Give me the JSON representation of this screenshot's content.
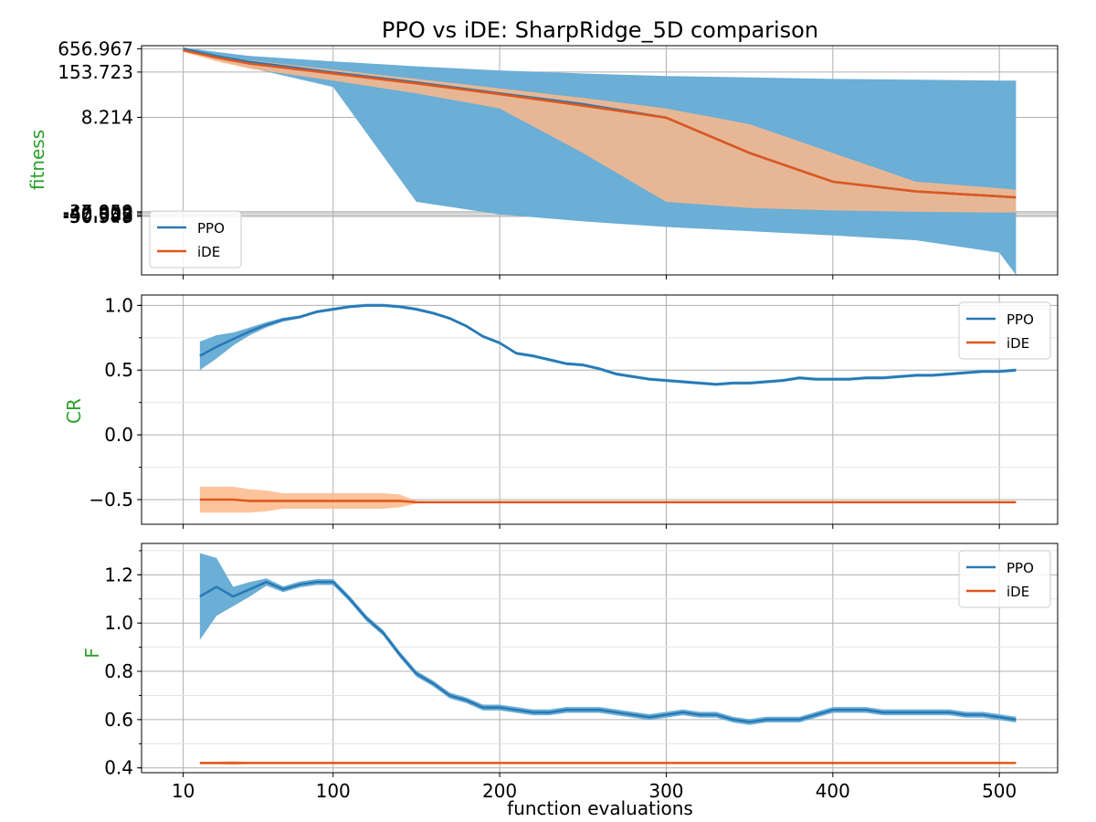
{
  "figure": {
    "title": "PPO vs iDE: SharpRidge_5D comparison",
    "xlabel": "function evaluations"
  },
  "colors": {
    "ppo_line": "#2878b5",
    "ppo_band": "#6baed6",
    "ide_line": "#e2561b",
    "ide_band": "#fdb98a",
    "axis_label": "#2ca02c"
  },
  "chart_data": [
    {
      "type": "line",
      "name": "fitness",
      "title": "PPO vs iDE: SharpRidge_5D comparison",
      "xlabel": "",
      "ylabel": "fitness",
      "xlim": [
        -15,
        535
      ],
      "x_ticks": [
        10,
        100,
        200,
        300,
        400,
        500
      ],
      "y_scale": "symlog",
      "y_ticks": [
        656.967,
        153.723,
        8.214,
        -37.959,
        -40.902,
        -46.032,
        -50.598,
        -50.949
      ],
      "y_tick_labels": [
        "656.967",
        "153.723",
        "8.214",
        "-37.959",
        "-40.902",
        "-46.032",
        "-50.598",
        "-50.949"
      ],
      "grid": true,
      "legend": "bottom-left",
      "x": [
        10,
        30,
        50,
        100,
        150,
        200,
        250,
        300,
        350,
        400,
        450,
        500,
        510
      ],
      "series": [
        {
          "name": "PPO",
          "values": [
            656.967,
            420,
            290,
            150,
            80,
            40,
            20,
            8,
            0,
            -5,
            -10,
            -14,
            -15
          ],
          "upper": [
            720,
            540,
            420,
            300,
            220,
            170,
            140,
            120,
            110,
            100,
            95,
            90,
            90
          ],
          "lower": [
            600,
            330,
            200,
            60,
            -20,
            -45,
            -70,
            -100,
            -130,
            -170,
            -230,
            -500,
            -2000
          ]
        },
        {
          "name": "iDE",
          "values": [
            600,
            380,
            260,
            140,
            75,
            38,
            18,
            8,
            0,
            -5,
            -10,
            -14,
            -15
          ],
          "upper": [
            680,
            450,
            320,
            180,
            100,
            55,
            30,
            15,
            5,
            0,
            -5,
            -8,
            -9
          ],
          "lower": [
            540,
            300,
            190,
            90,
            40,
            15,
            0,
            -20,
            -30,
            -35,
            -38,
            -40,
            -40
          ]
        }
      ]
    },
    {
      "type": "line",
      "name": "CR",
      "title": "",
      "xlabel": "",
      "ylabel": "CR",
      "xlim": [
        -15,
        535
      ],
      "ylim": [
        -0.69,
        1.08
      ],
      "x_ticks": [
        10,
        100,
        200,
        300,
        400,
        500
      ],
      "y_ticks": [
        -0.5,
        0.0,
        0.5,
        1.0
      ],
      "y_tick_labels": [
        "−0.5",
        "0.0",
        "0.5",
        "1.0"
      ],
      "grid": true,
      "legend": "top-right",
      "x": [
        20,
        30,
        40,
        50,
        60,
        70,
        80,
        90,
        100,
        110,
        120,
        130,
        140,
        150,
        160,
        170,
        180,
        190,
        200,
        210,
        220,
        230,
        240,
        250,
        260,
        270,
        280,
        290,
        300,
        310,
        320,
        330,
        340,
        350,
        360,
        370,
        380,
        390,
        400,
        410,
        420,
        430,
        440,
        450,
        460,
        470,
        480,
        490,
        500,
        510
      ],
      "series": [
        {
          "name": "PPO",
          "values": [
            0.61,
            0.68,
            0.74,
            0.8,
            0.85,
            0.89,
            0.91,
            0.95,
            0.97,
            0.99,
            1.0,
            1.0,
            0.99,
            0.97,
            0.94,
            0.9,
            0.84,
            0.76,
            0.71,
            0.63,
            0.61,
            0.58,
            0.55,
            0.54,
            0.51,
            0.47,
            0.45,
            0.43,
            0.42,
            0.41,
            0.4,
            0.39,
            0.4,
            0.4,
            0.41,
            0.42,
            0.44,
            0.43,
            0.43,
            0.43,
            0.44,
            0.44,
            0.45,
            0.46,
            0.46,
            0.47,
            0.48,
            0.49,
            0.49,
            0.5
          ],
          "band": [
            0.11,
            0.09,
            0.05,
            0.03,
            0.02,
            0.015,
            0.012,
            0.012,
            0.012,
            0.012,
            0.012,
            0.012,
            0.012,
            0.012,
            0.012,
            0.012,
            0.012,
            0.012,
            0.012,
            0.012,
            0.012,
            0.012,
            0.012,
            0.012,
            0.012,
            0.012,
            0.012,
            0.012,
            0.012,
            0.012,
            0.012,
            0.012,
            0.012,
            0.012,
            0.012,
            0.012,
            0.012,
            0.012,
            0.012,
            0.012,
            0.012,
            0.012,
            0.012,
            0.012,
            0.012,
            0.012,
            0.012,
            0.012,
            0.012,
            0.012
          ]
        },
        {
          "name": "iDE",
          "values": [
            -0.5,
            -0.5,
            -0.5,
            -0.51,
            -0.51,
            -0.51,
            -0.51,
            -0.51,
            -0.51,
            -0.51,
            -0.51,
            -0.51,
            -0.51,
            -0.52,
            -0.52,
            -0.52,
            -0.52,
            -0.52,
            -0.52,
            -0.52,
            -0.52,
            -0.52,
            -0.52,
            -0.52,
            -0.52,
            -0.52,
            -0.52,
            -0.52,
            -0.52,
            -0.52,
            -0.52,
            -0.52,
            -0.52,
            -0.52,
            -0.52,
            -0.52,
            -0.52,
            -0.52,
            -0.52,
            -0.52,
            -0.52,
            -0.52,
            -0.52,
            -0.52,
            -0.52,
            -0.52,
            -0.52,
            -0.52,
            -0.52,
            -0.52
          ],
          "band": [
            0.1,
            0.1,
            0.1,
            0.09,
            0.08,
            0.06,
            0.06,
            0.06,
            0.06,
            0.06,
            0.06,
            0.06,
            0.05,
            0.01,
            0.005,
            0.005,
            0.005,
            0.005,
            0.005,
            0.005,
            0.005,
            0.005,
            0.005,
            0.005,
            0.005,
            0.005,
            0.005,
            0.005,
            0.005,
            0.005,
            0.005,
            0.005,
            0.005,
            0.005,
            0.005,
            0.005,
            0.005,
            0.005,
            0.005,
            0.005,
            0.005,
            0.005,
            0.005,
            0.005,
            0.005,
            0.005,
            0.005,
            0.005,
            0.005,
            0.005
          ]
        }
      ]
    },
    {
      "type": "line",
      "name": "F",
      "title": "",
      "xlabel": "function evaluations",
      "ylabel": "F",
      "xlim": [
        -15,
        535
      ],
      "ylim": [
        0.38,
        1.33
      ],
      "x_ticks": [
        10,
        100,
        200,
        300,
        400,
        500
      ],
      "y_ticks": [
        0.4,
        0.6,
        0.8,
        1.0,
        1.2
      ],
      "y_tick_labels": [
        "0.4",
        "0.6",
        "0.8",
        "1.0",
        "1.2"
      ],
      "grid": true,
      "legend": "top-right",
      "x": [
        20,
        30,
        40,
        50,
        60,
        70,
        80,
        90,
        100,
        110,
        120,
        130,
        140,
        150,
        160,
        170,
        180,
        190,
        200,
        210,
        220,
        230,
        240,
        250,
        260,
        270,
        280,
        290,
        300,
        310,
        320,
        330,
        340,
        350,
        360,
        370,
        380,
        390,
        400,
        410,
        420,
        430,
        440,
        450,
        460,
        470,
        480,
        490,
        500,
        510
      ],
      "series": [
        {
          "name": "PPO",
          "values": [
            1.11,
            1.15,
            1.11,
            1.14,
            1.17,
            1.14,
            1.16,
            1.17,
            1.17,
            1.1,
            1.02,
            0.96,
            0.87,
            0.79,
            0.75,
            0.7,
            0.68,
            0.65,
            0.65,
            0.64,
            0.63,
            0.63,
            0.64,
            0.64,
            0.64,
            0.63,
            0.62,
            0.61,
            0.62,
            0.63,
            0.62,
            0.62,
            0.6,
            0.59,
            0.6,
            0.6,
            0.6,
            0.62,
            0.64,
            0.64,
            0.64,
            0.63,
            0.63,
            0.63,
            0.63,
            0.63,
            0.62,
            0.62,
            0.61,
            0.6
          ],
          "band": [
            0.18,
            0.12,
            0.04,
            0.03,
            0.015,
            0.012,
            0.012,
            0.012,
            0.012,
            0.012,
            0.012,
            0.012,
            0.012,
            0.012,
            0.012,
            0.012,
            0.012,
            0.012,
            0.012,
            0.012,
            0.012,
            0.012,
            0.012,
            0.012,
            0.012,
            0.012,
            0.012,
            0.012,
            0.012,
            0.012,
            0.012,
            0.012,
            0.012,
            0.012,
            0.012,
            0.012,
            0.012,
            0.012,
            0.012,
            0.012,
            0.012,
            0.012,
            0.012,
            0.012,
            0.012,
            0.012,
            0.012,
            0.012,
            0.012,
            0.012
          ]
        },
        {
          "name": "iDE",
          "values": [
            0.42,
            0.42,
            0.42,
            0.42,
            0.42,
            0.42,
            0.42,
            0.42,
            0.42,
            0.42,
            0.42,
            0.42,
            0.42,
            0.42,
            0.42,
            0.42,
            0.42,
            0.42,
            0.42,
            0.42,
            0.42,
            0.42,
            0.42,
            0.42,
            0.42,
            0.42,
            0.42,
            0.42,
            0.42,
            0.42,
            0.42,
            0.42,
            0.42,
            0.42,
            0.42,
            0.42,
            0.42,
            0.42,
            0.42,
            0.42,
            0.42,
            0.42,
            0.42,
            0.42,
            0.42,
            0.42,
            0.42,
            0.42,
            0.42,
            0.42
          ],
          "band": [
            0.005,
            0.005,
            0.008,
            0.004,
            0.003,
            0.003,
            0.003,
            0.003,
            0.003,
            0.003,
            0.003,
            0.003,
            0.003,
            0.003,
            0.003,
            0.003,
            0.003,
            0.003,
            0.003,
            0.003,
            0.003,
            0.003,
            0.003,
            0.003,
            0.003,
            0.003,
            0.003,
            0.003,
            0.003,
            0.003,
            0.003,
            0.003,
            0.003,
            0.003,
            0.003,
            0.003,
            0.003,
            0.003,
            0.003,
            0.003,
            0.003,
            0.003,
            0.003,
            0.003,
            0.003,
            0.003,
            0.003,
            0.003,
            0.003,
            0.003
          ]
        }
      ]
    }
  ]
}
